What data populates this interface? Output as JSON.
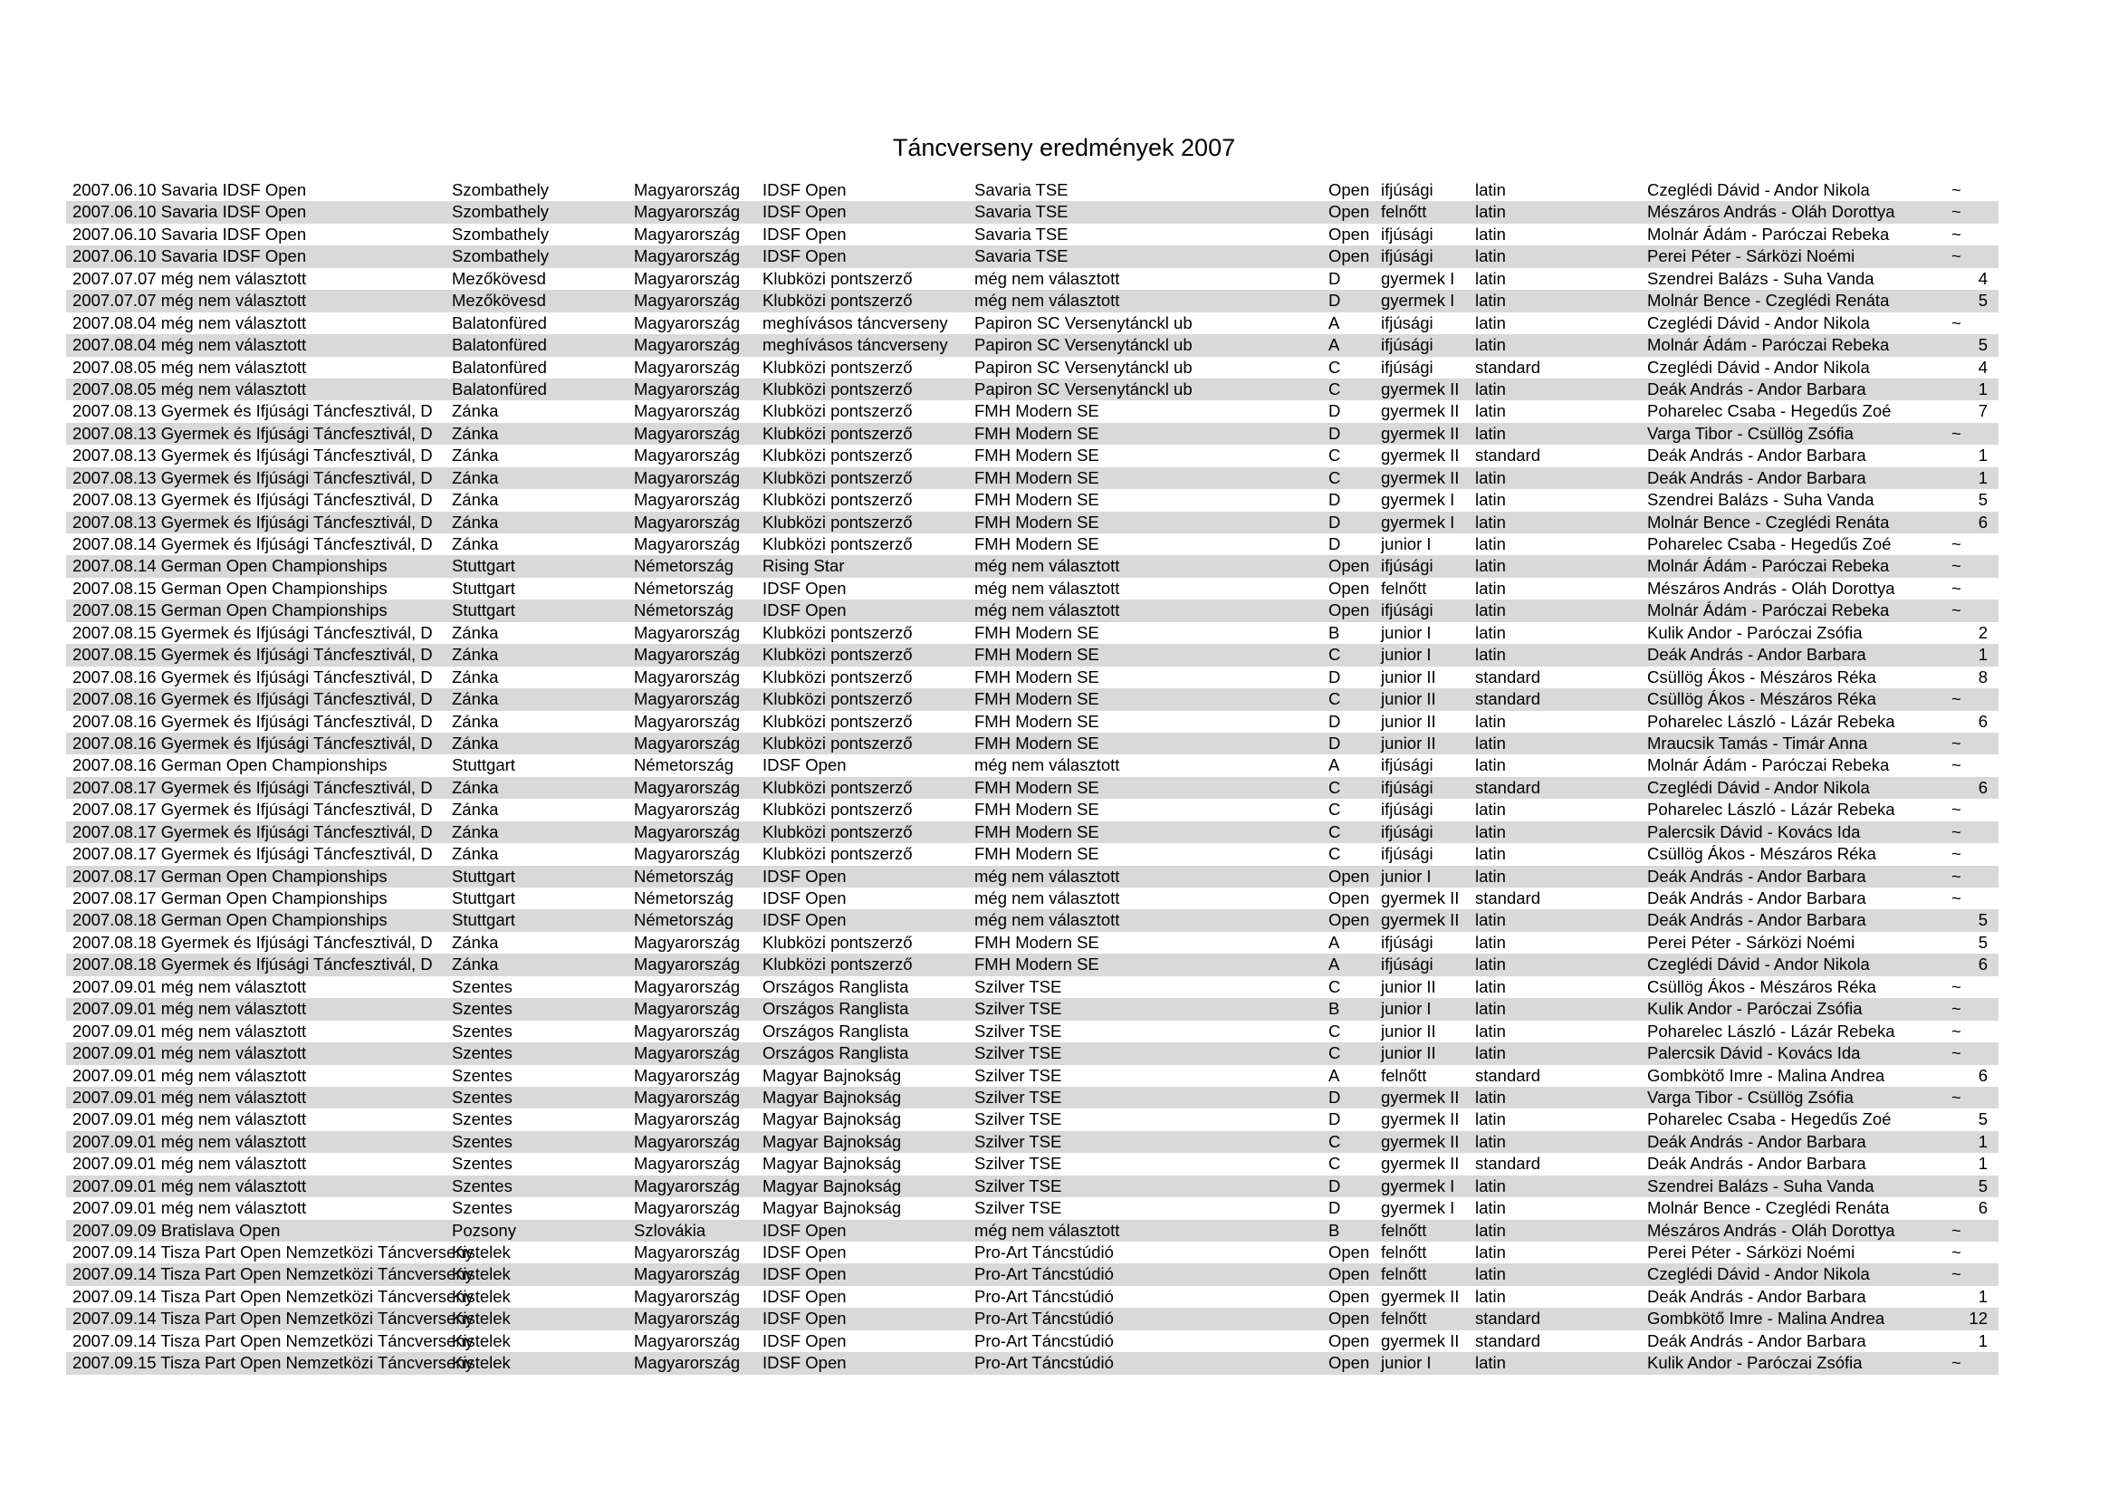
{
  "title": "Táncverseny eredmények 2007",
  "rows": [
    [
      "2007.06.10 Savaria IDSF Open",
      "Szombathely",
      "Magyarország",
      "IDSF Open",
      "Savaria TSE",
      "Open",
      "ifjúsági",
      "latin",
      "Czeglédi Dávid - Andor Nikola",
      "~"
    ],
    [
      "2007.06.10 Savaria IDSF Open",
      "Szombathely",
      "Magyarország",
      "IDSF Open",
      "Savaria TSE",
      "Open",
      "felnőtt",
      "latin",
      "Mészáros András - Oláh Dorottya",
      "~"
    ],
    [
      "2007.06.10 Savaria IDSF Open",
      "Szombathely",
      "Magyarország",
      "IDSF Open",
      "Savaria TSE",
      "Open",
      "ifjúsági",
      "latin",
      "Molnár Ádám - Paróczai Rebeka",
      "~"
    ],
    [
      "2007.06.10 Savaria IDSF Open",
      "Szombathely",
      "Magyarország",
      "IDSF Open",
      "Savaria TSE",
      "Open",
      "ifjúsági",
      "latin",
      "Perei Péter - Sárközi Noémi",
      "~"
    ],
    [
      "2007.07.07 még nem választott",
      "Mezőkövesd",
      "Magyarország",
      "Klubközi pontszerző",
      "még nem választott",
      "D",
      "gyermek I",
      "latin",
      "Szendrei Balázs - Suha Vanda",
      "4"
    ],
    [
      "2007.07.07 még nem választott",
      "Mezőkövesd",
      "Magyarország",
      "Klubközi pontszerző",
      "még nem választott",
      "D",
      "gyermek I",
      "latin",
      "Molnár Bence - Czeglédi Renáta",
      "5"
    ],
    [
      "2007.08.04 még nem választott",
      "Balatonfüred",
      "Magyarország",
      "meghívásos táncverseny",
      "Papiron SC Versenytánckl ub",
      "A",
      "ifjúsági",
      "latin",
      "Czeglédi Dávid - Andor Nikola",
      "~"
    ],
    [
      "2007.08.04 még nem választott",
      "Balatonfüred",
      "Magyarország",
      "meghívásos táncverseny",
      "Papiron SC Versenytánckl ub",
      "A",
      "ifjúsági",
      "latin",
      "Molnár Ádám - Paróczai Rebeka",
      "5"
    ],
    [
      "2007.08.05 még nem választott",
      "Balatonfüred",
      "Magyarország",
      "Klubközi pontszerző",
      "Papiron SC Versenytánckl ub",
      "C",
      "ifjúsági",
      "standard",
      "Czeglédi Dávid - Andor Nikola",
      "4"
    ],
    [
      "2007.08.05 még nem választott",
      "Balatonfüred",
      "Magyarország",
      "Klubközi pontszerző",
      "Papiron SC Versenytánckl ub",
      "C",
      "gyermek II",
      "latin",
      "Deák András - Andor Barbara",
      "1"
    ],
    [
      "2007.08.13 Gyermek és Ifjúsági Táncfesztivál, D",
      "Zánka",
      "Magyarország",
      "Klubközi pontszerző",
      "FMH Modern SE",
      "D",
      "gyermek II",
      "latin",
      "Poharelec Csaba - Hegedűs Zoé",
      "7"
    ],
    [
      "2007.08.13 Gyermek és Ifjúsági Táncfesztivál, D",
      "Zánka",
      "Magyarország",
      "Klubközi pontszerző",
      "FMH Modern SE",
      "D",
      "gyermek II",
      "latin",
      "Varga Tibor - Csüllög Zsófia",
      "~"
    ],
    [
      "2007.08.13 Gyermek és Ifjúsági Táncfesztivál, D",
      "Zánka",
      "Magyarország",
      "Klubközi pontszerző",
      "FMH Modern SE",
      "C",
      "gyermek II",
      "standard",
      "Deák András - Andor Barbara",
      "1"
    ],
    [
      "2007.08.13 Gyermek és Ifjúsági Táncfesztivál, D",
      "Zánka",
      "Magyarország",
      "Klubközi pontszerző",
      "FMH Modern SE",
      "C",
      "gyermek II",
      "latin",
      "Deák András - Andor Barbara",
      "1"
    ],
    [
      "2007.08.13 Gyermek és Ifjúsági Táncfesztivál, D",
      "Zánka",
      "Magyarország",
      "Klubközi pontszerző",
      "FMH Modern SE",
      "D",
      "gyermek I",
      "latin",
      "Szendrei Balázs - Suha Vanda",
      "5"
    ],
    [
      "2007.08.13 Gyermek és Ifjúsági Táncfesztivál, D",
      "Zánka",
      "Magyarország",
      "Klubközi pontszerző",
      "FMH Modern SE",
      "D",
      "gyermek I",
      "latin",
      "Molnár Bence - Czeglédi Renáta",
      "6"
    ],
    [
      "2007.08.14 Gyermek és Ifjúsági Táncfesztivál, D",
      "Zánka",
      "Magyarország",
      "Klubközi pontszerző",
      "FMH Modern SE",
      "D",
      "junior I",
      "latin",
      "Poharelec Csaba - Hegedűs Zoé",
      "~"
    ],
    [
      "2007.08.14 German Open Championships",
      "Stuttgart",
      "Németország",
      "Rising Star",
      "még nem választott",
      "Open",
      "ifjúsági",
      "latin",
      "Molnár Ádám - Paróczai Rebeka",
      "~"
    ],
    [
      "2007.08.15 German Open Championships",
      "Stuttgart",
      "Németország",
      "IDSF Open",
      "még nem választott",
      "Open",
      "felnőtt",
      "latin",
      "Mészáros András - Oláh Dorottya",
      "~"
    ],
    [
      "2007.08.15 German Open Championships",
      "Stuttgart",
      "Németország",
      "IDSF Open",
      "még nem választott",
      "Open",
      "ifjúsági",
      "latin",
      "Molnár Ádám - Paróczai Rebeka",
      "~"
    ],
    [
      "2007.08.15 Gyermek és Ifjúsági Táncfesztivál, D",
      "Zánka",
      "Magyarország",
      "Klubközi pontszerző",
      "FMH Modern SE",
      "B",
      "junior I",
      "latin",
      "Kulik Andor - Paróczai Zsófia",
      "2"
    ],
    [
      "2007.08.15 Gyermek és Ifjúsági Táncfesztivál, D",
      "Zánka",
      "Magyarország",
      "Klubközi pontszerző",
      "FMH Modern SE",
      "C",
      "junior I",
      "latin",
      "Deák András - Andor Barbara",
      "1"
    ],
    [
      "2007.08.16 Gyermek és Ifjúsági Táncfesztivál, D",
      "Zánka",
      "Magyarország",
      "Klubközi pontszerző",
      "FMH Modern SE",
      "D",
      "junior II",
      "standard",
      "Csüllög Ákos - Mészáros Réka",
      "8"
    ],
    [
      "2007.08.16 Gyermek és Ifjúsági Táncfesztivál, D",
      "Zánka",
      "Magyarország",
      "Klubközi pontszerző",
      "FMH Modern SE",
      "C",
      "junior II",
      "standard",
      "Csüllög Ákos - Mészáros Réka",
      "~"
    ],
    [
      "2007.08.16 Gyermek és Ifjúsági Táncfesztivál, D",
      "Zánka",
      "Magyarország",
      "Klubközi pontszerző",
      "FMH Modern SE",
      "D",
      "junior II",
      "latin",
      "Poharelec László - Lázár Rebeka",
      "6"
    ],
    [
      "2007.08.16 Gyermek és Ifjúsági Táncfesztivál, D",
      "Zánka",
      "Magyarország",
      "Klubközi pontszerző",
      "FMH Modern SE",
      "D",
      "junior II",
      "latin",
      "Mraucsik Tamás - Timár Anna",
      "~"
    ],
    [
      "2007.08.16 German Open Championships",
      "Stuttgart",
      "Németország",
      "IDSF Open",
      "még nem választott",
      "A",
      "ifjúsági",
      "latin",
      "Molnár Ádám - Paróczai Rebeka",
      "~"
    ],
    [
      "2007.08.17 Gyermek és Ifjúsági Táncfesztivál, D",
      "Zánka",
      "Magyarország",
      "Klubközi pontszerző",
      "FMH Modern SE",
      "C",
      "ifjúsági",
      "standard",
      "Czeglédi Dávid - Andor Nikola",
      "6"
    ],
    [
      "2007.08.17 Gyermek és Ifjúsági Táncfesztivál, D",
      "Zánka",
      "Magyarország",
      "Klubközi pontszerző",
      "FMH Modern SE",
      "C",
      "ifjúsági",
      "latin",
      "Poharelec László - Lázár Rebeka",
      "~"
    ],
    [
      "2007.08.17 Gyermek és Ifjúsági Táncfesztivál, D",
      "Zánka",
      "Magyarország",
      "Klubközi pontszerző",
      "FMH Modern SE",
      "C",
      "ifjúsági",
      "latin",
      "Palercsik Dávid - Kovács Ida",
      "~"
    ],
    [
      "2007.08.17 Gyermek és Ifjúsági Táncfesztivál, D",
      "Zánka",
      "Magyarország",
      "Klubközi pontszerző",
      "FMH Modern SE",
      "C",
      "ifjúsági",
      "latin",
      "Csüllög Ákos - Mészáros Réka",
      "~"
    ],
    [
      "2007.08.17 German Open Championships",
      "Stuttgart",
      "Németország",
      "IDSF Open",
      "még nem választott",
      "Open",
      "junior I",
      "latin",
      "Deák András - Andor Barbara",
      "~"
    ],
    [
      "2007.08.17 German Open Championships",
      "Stuttgart",
      "Németország",
      "IDSF Open",
      "még nem választott",
      "Open",
      "gyermek II",
      "standard",
      "Deák András - Andor Barbara",
      "~"
    ],
    [
      "2007.08.18 German Open Championships",
      "Stuttgart",
      "Németország",
      "IDSF Open",
      "még nem választott",
      "Open",
      "gyermek II",
      "latin",
      "Deák András - Andor Barbara",
      "5"
    ],
    [
      "2007.08.18 Gyermek és Ifjúsági Táncfesztivál, D",
      "Zánka",
      "Magyarország",
      "Klubközi pontszerző",
      "FMH Modern SE",
      "A",
      "ifjúsági",
      "latin",
      "Perei Péter - Sárközi Noémi",
      "5"
    ],
    [
      "2007.08.18 Gyermek és Ifjúsági Táncfesztivál, D",
      "Zánka",
      "Magyarország",
      "Klubközi pontszerző",
      "FMH Modern SE",
      "A",
      "ifjúsági",
      "latin",
      "Czeglédi Dávid - Andor Nikola",
      "6"
    ],
    [
      "2007.09.01 még nem választott",
      "Szentes",
      "Magyarország",
      "Országos Ranglista",
      "Szilver TSE",
      "C",
      "junior II",
      "latin",
      "Csüllög Ákos - Mészáros Réka",
      "~"
    ],
    [
      "2007.09.01 még nem választott",
      "Szentes",
      "Magyarország",
      "Országos Ranglista",
      "Szilver TSE",
      "B",
      "junior I",
      "latin",
      "Kulik Andor - Paróczai Zsófia",
      "~"
    ],
    [
      "2007.09.01 még nem választott",
      "Szentes",
      "Magyarország",
      "Országos Ranglista",
      "Szilver TSE",
      "C",
      "junior II",
      "latin",
      "Poharelec László - Lázár Rebeka",
      "~"
    ],
    [
      "2007.09.01 még nem választott",
      "Szentes",
      "Magyarország",
      "Országos Ranglista",
      "Szilver TSE",
      "C",
      "junior II",
      "latin",
      "Palercsik Dávid - Kovács Ida",
      "~"
    ],
    [
      "2007.09.01 még nem választott",
      "Szentes",
      "Magyarország",
      "Magyar Bajnokság",
      "Szilver TSE",
      "A",
      "felnőtt",
      "standard",
      "Gombkötő Imre - Malina Andrea",
      "6"
    ],
    [
      "2007.09.01 még nem választott",
      "Szentes",
      "Magyarország",
      "Magyar Bajnokság",
      "Szilver TSE",
      "D",
      "gyermek II",
      "latin",
      "Varga Tibor - Csüllög Zsófia",
      "~"
    ],
    [
      "2007.09.01 még nem választott",
      "Szentes",
      "Magyarország",
      "Magyar Bajnokság",
      "Szilver TSE",
      "D",
      "gyermek II",
      "latin",
      "Poharelec Csaba - Hegedűs Zoé",
      "5"
    ],
    [
      "2007.09.01 még nem választott",
      "Szentes",
      "Magyarország",
      "Magyar Bajnokság",
      "Szilver TSE",
      "C",
      "gyermek II",
      "latin",
      "Deák András - Andor Barbara",
      "1"
    ],
    [
      "2007.09.01 még nem választott",
      "Szentes",
      "Magyarország",
      "Magyar Bajnokság",
      "Szilver TSE",
      "C",
      "gyermek II",
      "standard",
      "Deák András - Andor Barbara",
      "1"
    ],
    [
      "2007.09.01 még nem választott",
      "Szentes",
      "Magyarország",
      "Magyar Bajnokság",
      "Szilver TSE",
      "D",
      "gyermek I",
      "latin",
      "Szendrei Balázs - Suha Vanda",
      "5"
    ],
    [
      "2007.09.01 még nem választott",
      "Szentes",
      "Magyarország",
      "Magyar Bajnokság",
      "Szilver TSE",
      "D",
      "gyermek I",
      "latin",
      "Molnár Bence - Czeglédi Renáta",
      "6"
    ],
    [
      "2007.09.09 Bratislava Open",
      "Pozsony",
      "Szlovákia",
      "IDSF Open",
      "még nem választott",
      "B",
      "felnőtt",
      "latin",
      "Mészáros András - Oláh Dorottya",
      "~"
    ],
    [
      "2007.09.14 Tisza Part Open Nemzetközi Táncverseny",
      "Kistelek",
      "Magyarország",
      "IDSF Open",
      "Pro-Art Táncstúdió",
      "Open",
      "felnőtt",
      "latin",
      "Perei Péter - Sárközi Noémi",
      "~"
    ],
    [
      "2007.09.14 Tisza Part Open Nemzetközi Táncverseny",
      "Kistelek",
      "Magyarország",
      "IDSF Open",
      "Pro-Art Táncstúdió",
      "Open",
      "felnőtt",
      "latin",
      "Czeglédi Dávid - Andor Nikola",
      "~"
    ],
    [
      "2007.09.14 Tisza Part Open Nemzetközi Táncverseny",
      "Kistelek",
      "Magyarország",
      "IDSF Open",
      "Pro-Art Táncstúdió",
      "Open",
      "gyermek II",
      "latin",
      "Deák András - Andor Barbara",
      "1"
    ],
    [
      "2007.09.14 Tisza Part Open Nemzetközi Táncverseny",
      "Kistelek",
      "Magyarország",
      "IDSF Open",
      "Pro-Art Táncstúdió",
      "Open",
      "felnőtt",
      "standard",
      "Gombkötő Imre - Malina Andrea",
      "12"
    ],
    [
      "2007.09.14 Tisza Part Open Nemzetközi Táncverseny",
      "Kistelek",
      "Magyarország",
      "IDSF Open",
      "Pro-Art Táncstúdió",
      "Open",
      "gyermek II",
      "standard",
      "Deák András - Andor Barbara",
      "1"
    ],
    [
      "2007.09.15 Tisza Part Open Nemzetközi Táncverseny",
      "Kistelek",
      "Magyarország",
      "IDSF Open",
      "Pro-Art Táncstúdió",
      "Open",
      "junior I",
      "latin",
      "Kulik Andor - Paróczai Zsófia",
      "~"
    ]
  ]
}
